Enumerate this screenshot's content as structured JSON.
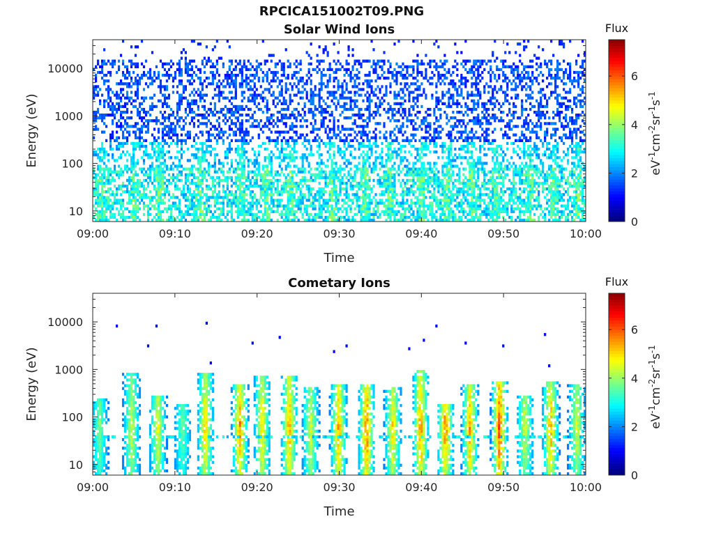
{
  "figure": {
    "title": "RPCICA151002T09.PNG"
  },
  "chart_data": [
    {
      "type": "heatmap",
      "title": "Solar Wind Ions",
      "xlabel": "Time",
      "ylabel": "Energy (eV)",
      "x_ticks": [
        "09:00",
        "09:10",
        "09:20",
        "09:30",
        "09:40",
        "09:50",
        "10:00"
      ],
      "xlim": [
        "09:00",
        "10:00"
      ],
      "y_scale": "log",
      "ylim": [
        6,
        40000
      ],
      "y_ticks": [
        "10",
        "100",
        "1000",
        "10000"
      ],
      "grid": false,
      "colorbar": {
        "label": "Flux",
        "unit_label": "eV-1cm-2sr-1s-1",
        "range": [
          0,
          7.5
        ],
        "ticks": [
          "0",
          "2",
          "4",
          "6"
        ],
        "colormap": "jet"
      },
      "pattern": {
        "description_free": true,
        "bands": [
          {
            "energy_range": [
              6,
              80
            ],
            "flux_range": [
              2.0,
              3.6
            ],
            "density": 0.55
          },
          {
            "energy_range": [
              80,
              300
            ],
            "flux_range": [
              1.8,
              3.0
            ],
            "density": 0.35
          },
          {
            "energy_range": [
              300,
              15000
            ],
            "flux_range": [
              1.0,
              2.0
            ],
            "density": 0.4
          },
          {
            "energy_range": [
              15000,
              40000
            ],
            "flux_range": [
              1.0,
              1.4
            ],
            "density": 0.05
          }
        ],
        "pulse_times_min": [
          1,
          5,
          8,
          13,
          18,
          21,
          24,
          29,
          33,
          36,
          40,
          43,
          46,
          49,
          53,
          56,
          59
        ]
      }
    },
    {
      "type": "heatmap",
      "title": "Cometary Ions",
      "xlabel": "Time",
      "ylabel": "Energy (eV)",
      "x_ticks": [
        "09:00",
        "09:10",
        "09:20",
        "09:30",
        "09:40",
        "09:50",
        "10:00"
      ],
      "xlim": [
        "09:00",
        "10:00"
      ],
      "y_scale": "log",
      "ylim": [
        6,
        40000
      ],
      "y_ticks": [
        "10",
        "100",
        "1000",
        "10000"
      ],
      "grid": false,
      "colorbar": {
        "label": "Flux",
        "unit_label": "eV-1cm-2sr-1s-1",
        "range": [
          0,
          7.5
        ],
        "ticks": [
          "0",
          "2",
          "4",
          "6"
        ],
        "colormap": "jet"
      },
      "pulses": [
        {
          "t_min": 0.7,
          "peak_flux": 4.2,
          "top_energy": 250
        },
        {
          "t_min": 4.6,
          "peak_flux": 4.8,
          "top_energy": 800
        },
        {
          "t_min": 7.8,
          "peak_flux": 5.2,
          "top_energy": 300
        },
        {
          "t_min": 10.8,
          "peak_flux": 4.0,
          "top_energy": 200
        },
        {
          "t_min": 13.6,
          "peak_flux": 5.6,
          "top_energy": 900
        },
        {
          "t_min": 17.8,
          "peak_flux": 6.2,
          "top_energy": 500
        },
        {
          "t_min": 20.5,
          "peak_flux": 5.5,
          "top_energy": 700
        },
        {
          "t_min": 23.8,
          "peak_flux": 6.0,
          "top_energy": 700
        },
        {
          "t_min": 26.4,
          "peak_flux": 5.0,
          "top_energy": 400
        },
        {
          "t_min": 29.8,
          "peak_flux": 6.0,
          "top_energy": 500
        },
        {
          "t_min": 33.2,
          "peak_flux": 6.5,
          "top_energy": 500
        },
        {
          "t_min": 36.4,
          "peak_flux": 5.5,
          "top_energy": 400
        },
        {
          "t_min": 39.8,
          "peak_flux": 6.2,
          "top_energy": 1000
        },
        {
          "t_min": 42.8,
          "peak_flux": 6.5,
          "top_energy": 200
        },
        {
          "t_min": 45.8,
          "peak_flux": 6.0,
          "top_energy": 500
        },
        {
          "t_min": 49.4,
          "peak_flux": 6.8,
          "top_energy": 600
        },
        {
          "t_min": 52.5,
          "peak_flux": 5.0,
          "top_energy": 300
        },
        {
          "t_min": 55.6,
          "peak_flux": 6.0,
          "top_energy": 600
        },
        {
          "t_min": 58.8,
          "peak_flux": 5.0,
          "top_energy": 500
        }
      ],
      "sparse_high_energy_points": [
        {
          "t_min": 2.8,
          "energy": 8500
        },
        {
          "t_min": 6.5,
          "energy": 3200
        },
        {
          "t_min": 7.5,
          "energy": 8000
        },
        {
          "t_min": 13.8,
          "energy": 9000
        },
        {
          "t_min": 14.2,
          "energy": 1400
        },
        {
          "t_min": 19.2,
          "energy": 3600
        },
        {
          "t_min": 22.5,
          "energy": 4800
        },
        {
          "t_min": 29.3,
          "energy": 2400
        },
        {
          "t_min": 30.8,
          "energy": 3000
        },
        {
          "t_min": 38.5,
          "energy": 2800
        },
        {
          "t_min": 40.2,
          "energy": 4000
        },
        {
          "t_min": 41.8,
          "energy": 8500
        },
        {
          "t_min": 45.2,
          "energy": 3600
        },
        {
          "t_min": 49.8,
          "energy": 3300
        },
        {
          "t_min": 54.8,
          "energy": 5500
        },
        {
          "t_min": 55.4,
          "energy": 1200
        }
      ]
    }
  ]
}
